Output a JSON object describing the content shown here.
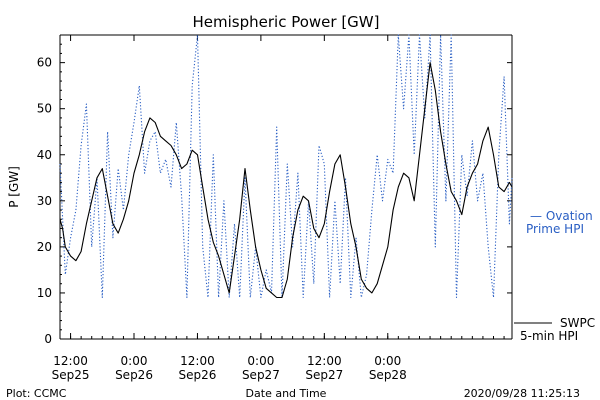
{
  "chart_data": {
    "type": "line",
    "title": "Hemispheric Power [GW]",
    "xlabel": "Date and Time",
    "ylabel": "P [GW]",
    "ylim": [
      0,
      66
    ],
    "yticks": [
      0,
      10,
      20,
      30,
      40,
      50,
      60
    ],
    "xlim": [
      "2020-09-25T10:00",
      "2020-09-28T23:30"
    ],
    "x_tick_labels": [
      {
        "time": "2020-09-25T12:00",
        "line1": "12:00",
        "line2": "Sep25"
      },
      {
        "time": "2020-09-26T00:00",
        "line1": "0:00",
        "line2": "Sep26"
      },
      {
        "time": "2020-09-26T12:00",
        "line1": "12:00",
        "line2": "Sep26"
      },
      {
        "time": "2020-09-27T00:00",
        "line1": "0:00",
        "line2": "Sep27"
      },
      {
        "time": "2020-09-27T12:00",
        "line1": "12:00",
        "line2": "Sep27"
      },
      {
        "time": "2020-09-28T00:00",
        "line1": "0:00",
        "line2": "Sep28"
      }
    ],
    "grid": false,
    "series": [
      {
        "name": "SWPC 5-min HPI",
        "style": "solid",
        "color": "#000000",
        "points": [
          [
            "2020-09-25T10:00",
            26
          ],
          [
            "2020-09-25T10:30",
            24
          ],
          [
            "2020-09-25T11:00",
            20
          ],
          [
            "2020-09-25T12:00",
            18
          ],
          [
            "2020-09-25T13:00",
            17
          ],
          [
            "2020-09-25T14:00",
            19
          ],
          [
            "2020-09-25T15:00",
            25
          ],
          [
            "2020-09-25T16:00",
            30
          ],
          [
            "2020-09-25T17:00",
            35
          ],
          [
            "2020-09-25T18:00",
            37
          ],
          [
            "2020-09-25T19:00",
            31
          ],
          [
            "2020-09-25T20:00",
            25
          ],
          [
            "2020-09-25T21:00",
            23
          ],
          [
            "2020-09-25T22:00",
            26
          ],
          [
            "2020-09-25T23:00",
            30
          ],
          [
            "2020-09-26T00:00",
            36
          ],
          [
            "2020-09-26T01:00",
            40
          ],
          [
            "2020-09-26T02:00",
            45
          ],
          [
            "2020-09-26T03:00",
            48
          ],
          [
            "2020-09-26T04:00",
            47
          ],
          [
            "2020-09-26T05:00",
            44
          ],
          [
            "2020-09-26T06:00",
            43
          ],
          [
            "2020-09-26T07:00",
            42
          ],
          [
            "2020-09-26T08:00",
            40
          ],
          [
            "2020-09-26T09:00",
            37
          ],
          [
            "2020-09-26T10:00",
            38
          ],
          [
            "2020-09-26T11:00",
            41
          ],
          [
            "2020-09-26T12:00",
            40
          ],
          [
            "2020-09-26T13:00",
            33
          ],
          [
            "2020-09-26T14:00",
            26
          ],
          [
            "2020-09-26T15:00",
            21
          ],
          [
            "2020-09-26T16:00",
            18
          ],
          [
            "2020-09-26T17:00",
            14
          ],
          [
            "2020-09-26T18:00",
            10
          ],
          [
            "2020-09-26T19:00",
            18
          ],
          [
            "2020-09-26T20:00",
            26
          ],
          [
            "2020-09-26T21:00",
            37
          ],
          [
            "2020-09-26T22:00",
            28
          ],
          [
            "2020-09-26T23:00",
            20
          ],
          [
            "2020-09-27T00:00",
            15
          ],
          [
            "2020-09-27T01:00",
            11
          ],
          [
            "2020-09-27T02:00",
            10
          ],
          [
            "2020-09-27T03:00",
            9
          ],
          [
            "2020-09-27T04:00",
            9
          ],
          [
            "2020-09-27T05:00",
            13
          ],
          [
            "2020-09-27T06:00",
            22
          ],
          [
            "2020-09-27T07:00",
            28
          ],
          [
            "2020-09-27T08:00",
            31
          ],
          [
            "2020-09-27T09:00",
            30
          ],
          [
            "2020-09-27T10:00",
            24
          ],
          [
            "2020-09-27T11:00",
            22
          ],
          [
            "2020-09-27T12:00",
            25
          ],
          [
            "2020-09-27T13:00",
            32
          ],
          [
            "2020-09-27T14:00",
            38
          ],
          [
            "2020-09-27T15:00",
            40
          ],
          [
            "2020-09-27T16:00",
            33
          ],
          [
            "2020-09-27T17:00",
            25
          ],
          [
            "2020-09-27T18:00",
            20
          ],
          [
            "2020-09-27T19:00",
            13
          ],
          [
            "2020-09-27T20:00",
            11
          ],
          [
            "2020-09-27T21:00",
            10
          ],
          [
            "2020-09-27T22:00",
            12
          ],
          [
            "2020-09-27T23:00",
            16
          ],
          [
            "2020-09-28T00:00",
            20
          ],
          [
            "2020-09-28T01:00",
            28
          ],
          [
            "2020-09-28T02:00",
            33
          ],
          [
            "2020-09-28T03:00",
            36
          ],
          [
            "2020-09-28T04:00",
            35
          ],
          [
            "2020-09-28T05:00",
            30
          ],
          [
            "2020-09-28T06:00",
            40
          ],
          [
            "2020-09-28T07:00",
            50
          ],
          [
            "2020-09-28T08:00",
            60
          ],
          [
            "2020-09-28T09:00",
            54
          ],
          [
            "2020-09-28T10:00",
            45
          ],
          [
            "2020-09-28T11:00",
            38
          ],
          [
            "2020-09-28T12:00",
            32
          ],
          [
            "2020-09-28T13:00",
            30
          ],
          [
            "2020-09-28T14:00",
            27
          ],
          [
            "2020-09-28T15:00",
            33
          ],
          [
            "2020-09-28T16:00",
            36
          ],
          [
            "2020-09-28T17:00",
            38
          ],
          [
            "2020-09-28T18:00",
            43
          ],
          [
            "2020-09-28T19:00",
            46
          ],
          [
            "2020-09-28T20:00",
            40
          ],
          [
            "2020-09-28T21:00",
            33
          ],
          [
            "2020-09-28T22:00",
            32
          ],
          [
            "2020-09-28T23:00",
            34
          ],
          [
            "2020-09-28T23:30",
            33
          ]
        ]
      },
      {
        "name": "Ovation Prime HPI",
        "style": "dotted",
        "color": "#2a5fc4",
        "points": [
          [
            "2020-09-25T10:00",
            38
          ],
          [
            "2020-09-25T11:00",
            14
          ],
          [
            "2020-09-25T12:00",
            22
          ],
          [
            "2020-09-25T13:00",
            28
          ],
          [
            "2020-09-25T14:00",
            42
          ],
          [
            "2020-09-25T15:00",
            51
          ],
          [
            "2020-09-25T16:00",
            20
          ],
          [
            "2020-09-25T17:00",
            35
          ],
          [
            "2020-09-25T18:00",
            9
          ],
          [
            "2020-09-25T19:00",
            45
          ],
          [
            "2020-09-25T20:00",
            22
          ],
          [
            "2020-09-25T21:00",
            37
          ],
          [
            "2020-09-25T22:00",
            28
          ],
          [
            "2020-09-25T23:00",
            40
          ],
          [
            "2020-09-26T00:00",
            47
          ],
          [
            "2020-09-26T01:00",
            55
          ],
          [
            "2020-09-26T02:00",
            36
          ],
          [
            "2020-09-26T03:00",
            43
          ],
          [
            "2020-09-26T04:00",
            45
          ],
          [
            "2020-09-26T05:00",
            36
          ],
          [
            "2020-09-26T06:00",
            39
          ],
          [
            "2020-09-26T07:00",
            33
          ],
          [
            "2020-09-26T08:00",
            47
          ],
          [
            "2020-09-26T09:00",
            31
          ],
          [
            "2020-09-26T10:00",
            9
          ],
          [
            "2020-09-26T11:00",
            55
          ],
          [
            "2020-09-26T12:00",
            66
          ],
          [
            "2020-09-26T13:00",
            20
          ],
          [
            "2020-09-26T14:00",
            9
          ],
          [
            "2020-09-26T15:00",
            40
          ],
          [
            "2020-09-26T16:00",
            9
          ],
          [
            "2020-09-26T17:00",
            30
          ],
          [
            "2020-09-26T18:00",
            9
          ],
          [
            "2020-09-26T19:00",
            25
          ],
          [
            "2020-09-26T20:00",
            9
          ],
          [
            "2020-09-26T21:00",
            35
          ],
          [
            "2020-09-26T22:00",
            9
          ],
          [
            "2020-09-26T23:00",
            20
          ],
          [
            "2020-09-27T00:00",
            9
          ],
          [
            "2020-09-27T01:00",
            15
          ],
          [
            "2020-09-27T02:00",
            10
          ],
          [
            "2020-09-27T03:00",
            46
          ],
          [
            "2020-09-27T04:00",
            9
          ],
          [
            "2020-09-27T05:00",
            38
          ],
          [
            "2020-09-27T06:00",
            20
          ],
          [
            "2020-09-27T07:00",
            36
          ],
          [
            "2020-09-27T08:00",
            9
          ],
          [
            "2020-09-27T09:00",
            30
          ],
          [
            "2020-09-27T10:00",
            12
          ],
          [
            "2020-09-27T11:00",
            42
          ],
          [
            "2020-09-27T12:00",
            38
          ],
          [
            "2020-09-27T13:00",
            9
          ],
          [
            "2020-09-27T14:00",
            30
          ],
          [
            "2020-09-27T15:00",
            12
          ],
          [
            "2020-09-27T16:00",
            35
          ],
          [
            "2020-09-27T17:00",
            9
          ],
          [
            "2020-09-27T18:00",
            22
          ],
          [
            "2020-09-27T19:00",
            9
          ],
          [
            "2020-09-27T20:00",
            14
          ],
          [
            "2020-09-27T21:00",
            28
          ],
          [
            "2020-09-27T22:00",
            40
          ],
          [
            "2020-09-27T23:00",
            30
          ],
          [
            "2020-09-28T00:00",
            39
          ],
          [
            "2020-09-28T01:00",
            36
          ],
          [
            "2020-09-28T02:00",
            66
          ],
          [
            "2020-09-28T03:00",
            50
          ],
          [
            "2020-09-28T04:00",
            66
          ],
          [
            "2020-09-28T05:00",
            40
          ],
          [
            "2020-09-28T06:00",
            66
          ],
          [
            "2020-09-28T07:00",
            48
          ],
          [
            "2020-09-28T08:00",
            66
          ],
          [
            "2020-09-28T09:00",
            20
          ],
          [
            "2020-09-28T10:00",
            66
          ],
          [
            "2020-09-28T11:00",
            30
          ],
          [
            "2020-09-28T12:00",
            66
          ],
          [
            "2020-09-28T13:00",
            9
          ],
          [
            "2020-09-28T14:00",
            40
          ],
          [
            "2020-09-28T15:00",
            31
          ],
          [
            "2020-09-28T16:00",
            43
          ],
          [
            "2020-09-28T17:00",
            30
          ],
          [
            "2020-09-28T18:00",
            36
          ],
          [
            "2020-09-28T19:00",
            20
          ],
          [
            "2020-09-28T20:00",
            9
          ],
          [
            "2020-09-28T21:00",
            40
          ],
          [
            "2020-09-28T22:00",
            57
          ],
          [
            "2020-09-28T23:00",
            25
          ],
          [
            "2020-09-28T23:30",
            35
          ]
        ]
      }
    ],
    "legend": {
      "ovation_line1": "— Ovation",
      "ovation_line2": "Prime HPI",
      "swpc_line1": "SWPC",
      "swpc_line2": "5-min HPI"
    },
    "footer": {
      "left": "Plot: CCMC",
      "center": "Date and Time",
      "right": "2020/09/28 11:25:13"
    }
  }
}
